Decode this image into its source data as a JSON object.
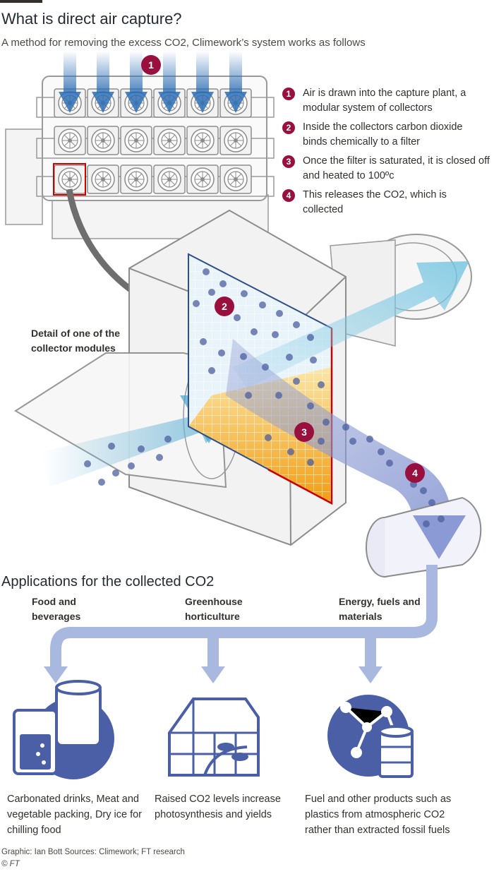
{
  "header": {
    "title": "What is direct air capture?",
    "subtitle": "A method for removing the excess CO2, Climework’s system works as follows"
  },
  "steps": [
    {
      "num": "1",
      "text": "Air is drawn into the capture plant, a modular system of collectors"
    },
    {
      "num": "2",
      "text": "Inside the collectors carbon dioxide binds chemically to a filter"
    },
    {
      "num": "3",
      "text": "Once the filter is saturated, it is closed off and heated to 100ºc"
    },
    {
      "num": "4",
      "text": "This releases the CO2, which is collected"
    }
  ],
  "detail_label": "Detail of one of the collector modules",
  "applications": {
    "title": "Applications for the collected CO2",
    "items": [
      {
        "category": "Food and beverages",
        "description": "Carbonated drinks, Meat and vegetable packing, Dry ice for chilling food",
        "icon": "food-drinks-icon"
      },
      {
        "category": "Greenhouse horticulture",
        "description": "Raised CO2 levels increase photosynthesis and yields",
        "icon": "greenhouse-icon"
      },
      {
        "category": "Energy, fuels and materials",
        "description": "Fuel and other products such as plastics from atmospheric CO2 rather than extracted fossil fuels",
        "icon": "fuel-barrel-molecule-icon"
      }
    ]
  },
  "footer": {
    "source": "Graphic: Ian Bott  Sources: Climework; FT research",
    "credit": "© FT"
  },
  "colors": {
    "accent": "#990f3d",
    "icon_blue": "#4a5fa6",
    "flow_blue": "#a9b8df",
    "air_blue": "#6fb8d9",
    "filter_orange": "#f4a623",
    "highlight_red": "#cc0000"
  }
}
